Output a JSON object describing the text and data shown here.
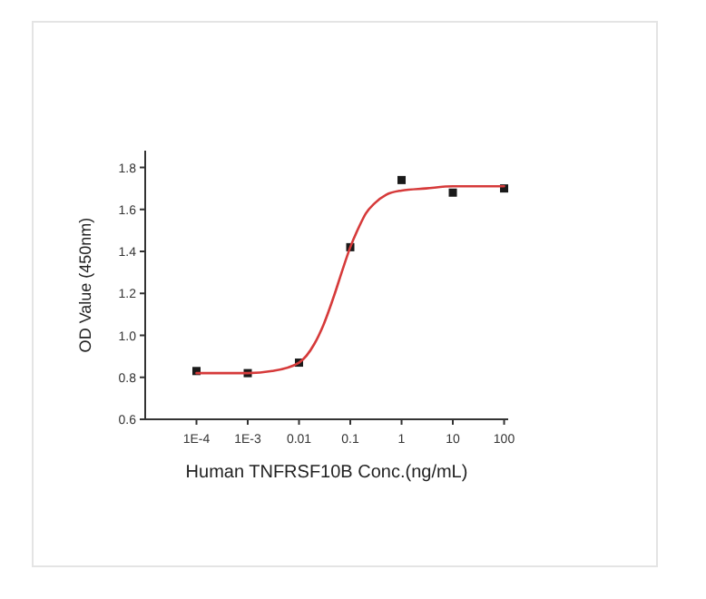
{
  "chart_data": {
    "type": "scatter",
    "xlabel": "Human TNFRSF10B Conc.(ng/mL)",
    "ylabel": "OD Value (450nm)",
    "log": "x",
    "xlim": [
      1e-05,
      120
    ],
    "ylim": [
      0.6,
      1.88
    ],
    "xticks": [
      {
        "value": 0.0001,
        "label": "1E-4"
      },
      {
        "value": 0.001,
        "label": "1E-3"
      },
      0.01,
      0.1,
      1,
      10,
      100
    ],
    "yticks": [
      {
        "value": 0.6,
        "label": "0.6"
      },
      {
        "value": 0.8,
        "label": "0.8"
      },
      {
        "value": 1.0,
        "label": "1.0"
      },
      {
        "value": 1.2,
        "label": "1.2"
      },
      {
        "value": 1.4,
        "label": "1.4"
      },
      {
        "value": 1.6,
        "label": "1.6"
      },
      {
        "value": 1.8,
        "label": "1.8"
      }
    ],
    "series": [
      {
        "marker": "square",
        "color": "#1a1a1a",
        "x": [
          0.0001,
          0.001,
          0.01,
          0.1,
          1,
          10,
          100
        ],
        "values": [
          0.83,
          0.82,
          0.87,
          1.42,
          1.74,
          1.68,
          1.7
        ]
      },
      {
        "type": "line",
        "marker": "none",
        "line_style": "solid",
        "color": "#d63a3a",
        "x": [
          0.0001,
          0.0003,
          0.001,
          0.003,
          0.01,
          0.02,
          0.03,
          0.05,
          0.07,
          0.1,
          0.15,
          0.2,
          0.3,
          0.5,
          1,
          3,
          10,
          100
        ],
        "values": [
          0.82,
          0.82,
          0.82,
          0.83,
          0.87,
          0.96,
          1.05,
          1.2,
          1.31,
          1.42,
          1.52,
          1.58,
          1.63,
          1.67,
          1.69,
          1.7,
          1.71,
          1.71
        ]
      }
    ]
  }
}
